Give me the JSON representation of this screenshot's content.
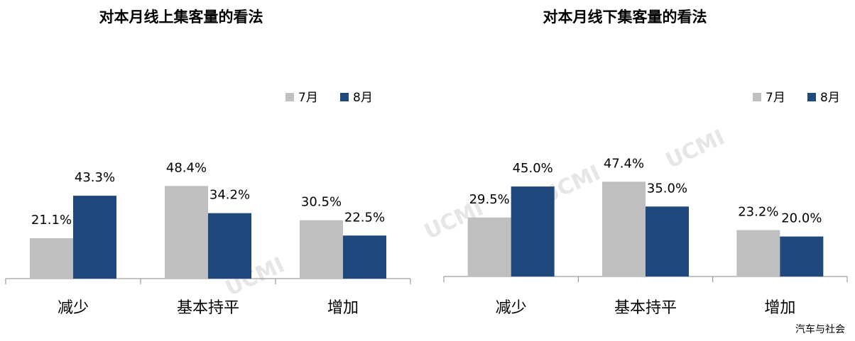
{
  "chart_data": [
    {
      "type": "bar",
      "title": "对本月线上集客量的看法",
      "categories": [
        "减少",
        "基本持平",
        "增加"
      ],
      "series": [
        {
          "name": "7月",
          "color": "#bfbfbf",
          "values": [
            21.1,
            48.4,
            30.5
          ],
          "value_labels": [
            "21.1%",
            "48.4%",
            "30.5%"
          ]
        },
        {
          "name": "8月",
          "color": "#1f497d",
          "values": [
            43.3,
            34.2,
            22.5
          ],
          "value_labels": [
            "43.3%",
            "34.2%",
            "22.5%"
          ]
        }
      ]
    },
    {
      "type": "bar",
      "title": "对本月线下集客量的看法",
      "categories": [
        "减少",
        "基本持平",
        "增加"
      ],
      "series": [
        {
          "name": "7月",
          "color": "#bfbfbf",
          "values": [
            29.5,
            47.4,
            23.2
          ],
          "value_labels": [
            "29.5%",
            "47.4%",
            "23.2%"
          ]
        },
        {
          "name": "8月",
          "color": "#1f497d",
          "values": [
            45.0,
            35.0,
            20.0
          ],
          "value_labels": [
            "45.0%",
            "35.0%",
            "20.0%"
          ]
        }
      ]
    }
  ],
  "watermark": "UCMI",
  "source": "汽车与社会"
}
